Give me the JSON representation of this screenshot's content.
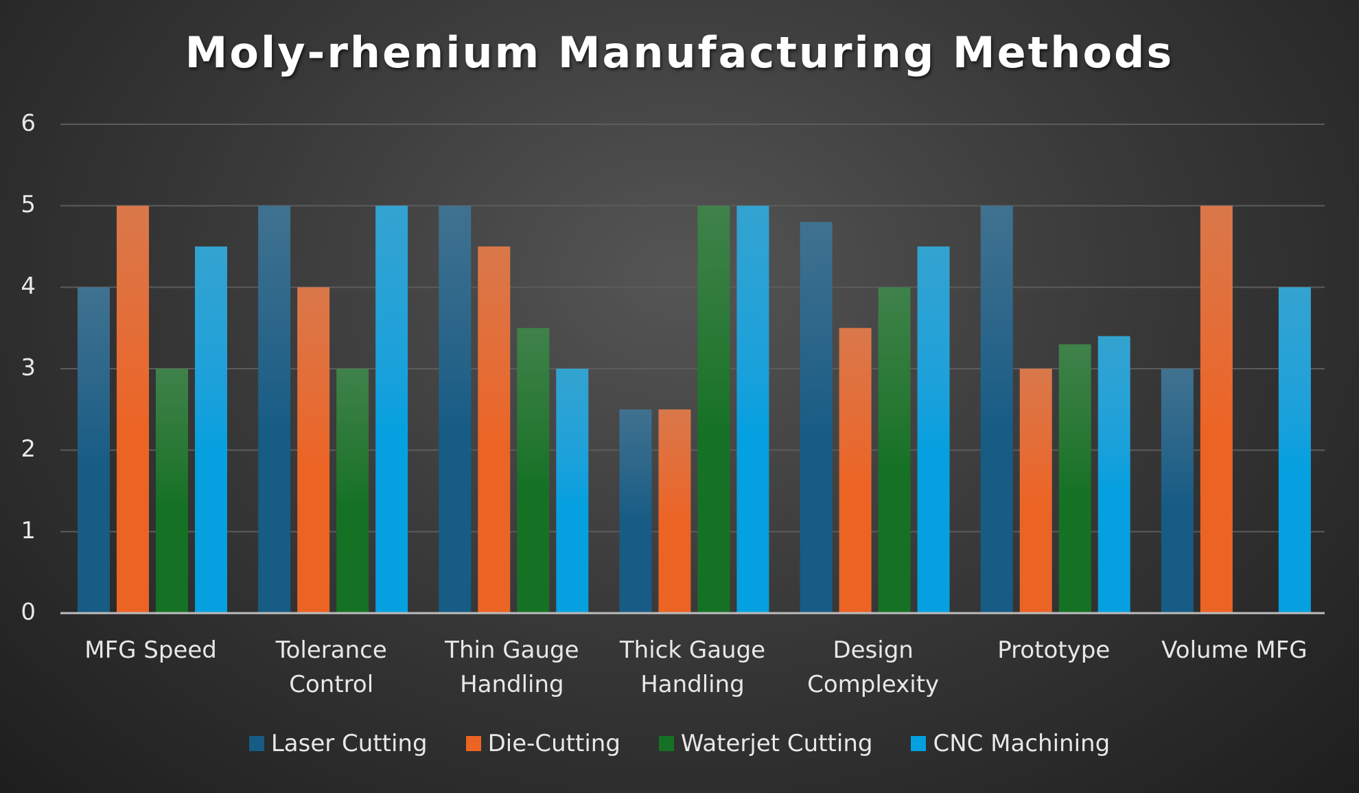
{
  "chart_data": {
    "type": "bar",
    "title": "Moly-rhenium Manufacturing Methods",
    "categories": [
      "MFG Speed",
      "Tolerance Control",
      "Thin Gauge Handling",
      "Thick Gauge Handling",
      "Design Complexity",
      "Prototype",
      "Volume MFG"
    ],
    "series": [
      {
        "name": "Laser Cutting",
        "color": "#165c85",
        "values": [
          4,
          5,
          5,
          2.5,
          4.8,
          5,
          3
        ]
      },
      {
        "name": "Die-Cutting",
        "color": "#ec6424",
        "values": [
          5,
          4,
          4.5,
          2.5,
          3.5,
          3,
          5
        ]
      },
      {
        "name": "Waterjet Cutting",
        "color": "#157225",
        "values": [
          3,
          3,
          3.5,
          5,
          4,
          3.3,
          null
        ]
      },
      {
        "name": "CNC Machining",
        "color": "#05a0df",
        "values": [
          4.5,
          5,
          3,
          5,
          4.5,
          3.4,
          4
        ]
      }
    ],
    "ylim": [
      0,
      6
    ],
    "yticks": [
      0,
      1,
      2,
      3,
      4,
      5,
      6
    ],
    "grid": true,
    "legend": "bottom"
  }
}
